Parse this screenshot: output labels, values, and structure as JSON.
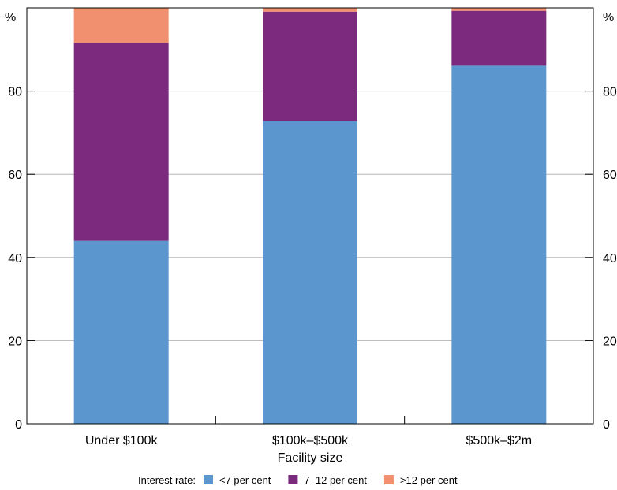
{
  "chart_data": {
    "type": "bar",
    "stacked": true,
    "categories": [
      "Under $100k",
      "$100k–$500k",
      "$500k–$2m"
    ],
    "series": [
      {
        "name": "<7 per cent",
        "values": [
          44,
          72.8,
          86.1
        ],
        "color": "#5b96cf"
      },
      {
        "name": "7–12 per cent",
        "values": [
          47.6,
          26.3,
          13.2
        ],
        "color": "#7b2a7e"
      },
      {
        "name": ">12 per cent",
        "values": [
          8.4,
          0.9,
          0.7
        ],
        "color": "#f0906f"
      }
    ],
    "xlabel": "Facility size",
    "y_unit_left": "%",
    "y_unit_right": "%",
    "ylim": [
      0,
      100
    ],
    "yticks": [
      "0",
      "20",
      "40",
      "60",
      "80"
    ],
    "grid": true,
    "legend": {
      "title": "Interest rate:",
      "placement": "bottom"
    }
  }
}
